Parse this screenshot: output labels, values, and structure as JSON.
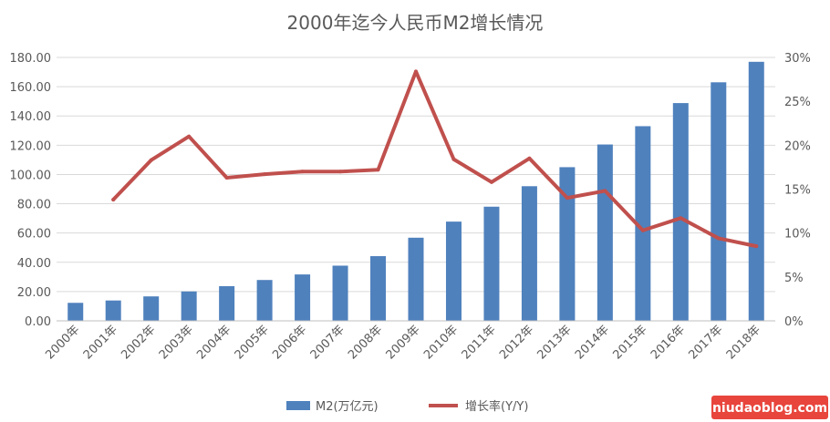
{
  "chart_data": {
    "type": "bar",
    "title": "2000年迄今人民币M2增长情况",
    "categories": [
      "2000年",
      "2001年",
      "2002年",
      "2003年",
      "2004年",
      "2005年",
      "2006年",
      "2007年",
      "2008年",
      "2009年",
      "2010年",
      "2011年",
      "2012年",
      "2013年",
      "2014年",
      "2015年",
      "2016年",
      "2017年",
      "2018年"
    ],
    "series": [
      {
        "name": "M2(万亿元)",
        "type": "bar",
        "axis": "left",
        "color": "#4f81bd",
        "values": [
          12.3,
          13.9,
          16.7,
          20.1,
          23.7,
          27.9,
          31.7,
          37.7,
          44.2,
          56.8,
          67.8,
          78.0,
          92.0,
          105.0,
          120.5,
          133.0,
          148.8,
          163.0,
          177.0
        ]
      },
      {
        "name": "增长率(Y/Y)",
        "type": "line",
        "axis": "right",
        "color": "#c0504d",
        "values": [
          null,
          13.8,
          18.3,
          21.0,
          16.3,
          16.7,
          17.0,
          17.0,
          17.2,
          28.4,
          18.4,
          15.8,
          18.5,
          14.0,
          14.8,
          10.3,
          11.7,
          9.4,
          8.5
        ]
      }
    ],
    "left_axis": {
      "ylim": [
        0,
        180
      ],
      "ticks": [
        "0.00",
        "20.00",
        "40.00",
        "60.00",
        "80.00",
        "100.00",
        "120.00",
        "140.00",
        "160.00",
        "180.00"
      ]
    },
    "right_axis": {
      "ylim": [
        0,
        30
      ],
      "ticks": [
        "0%",
        "5%",
        "10%",
        "15%",
        "20%",
        "25%",
        "30%"
      ]
    },
    "grid": true,
    "legend": "bottom"
  },
  "watermark": "niudaoblog.com"
}
